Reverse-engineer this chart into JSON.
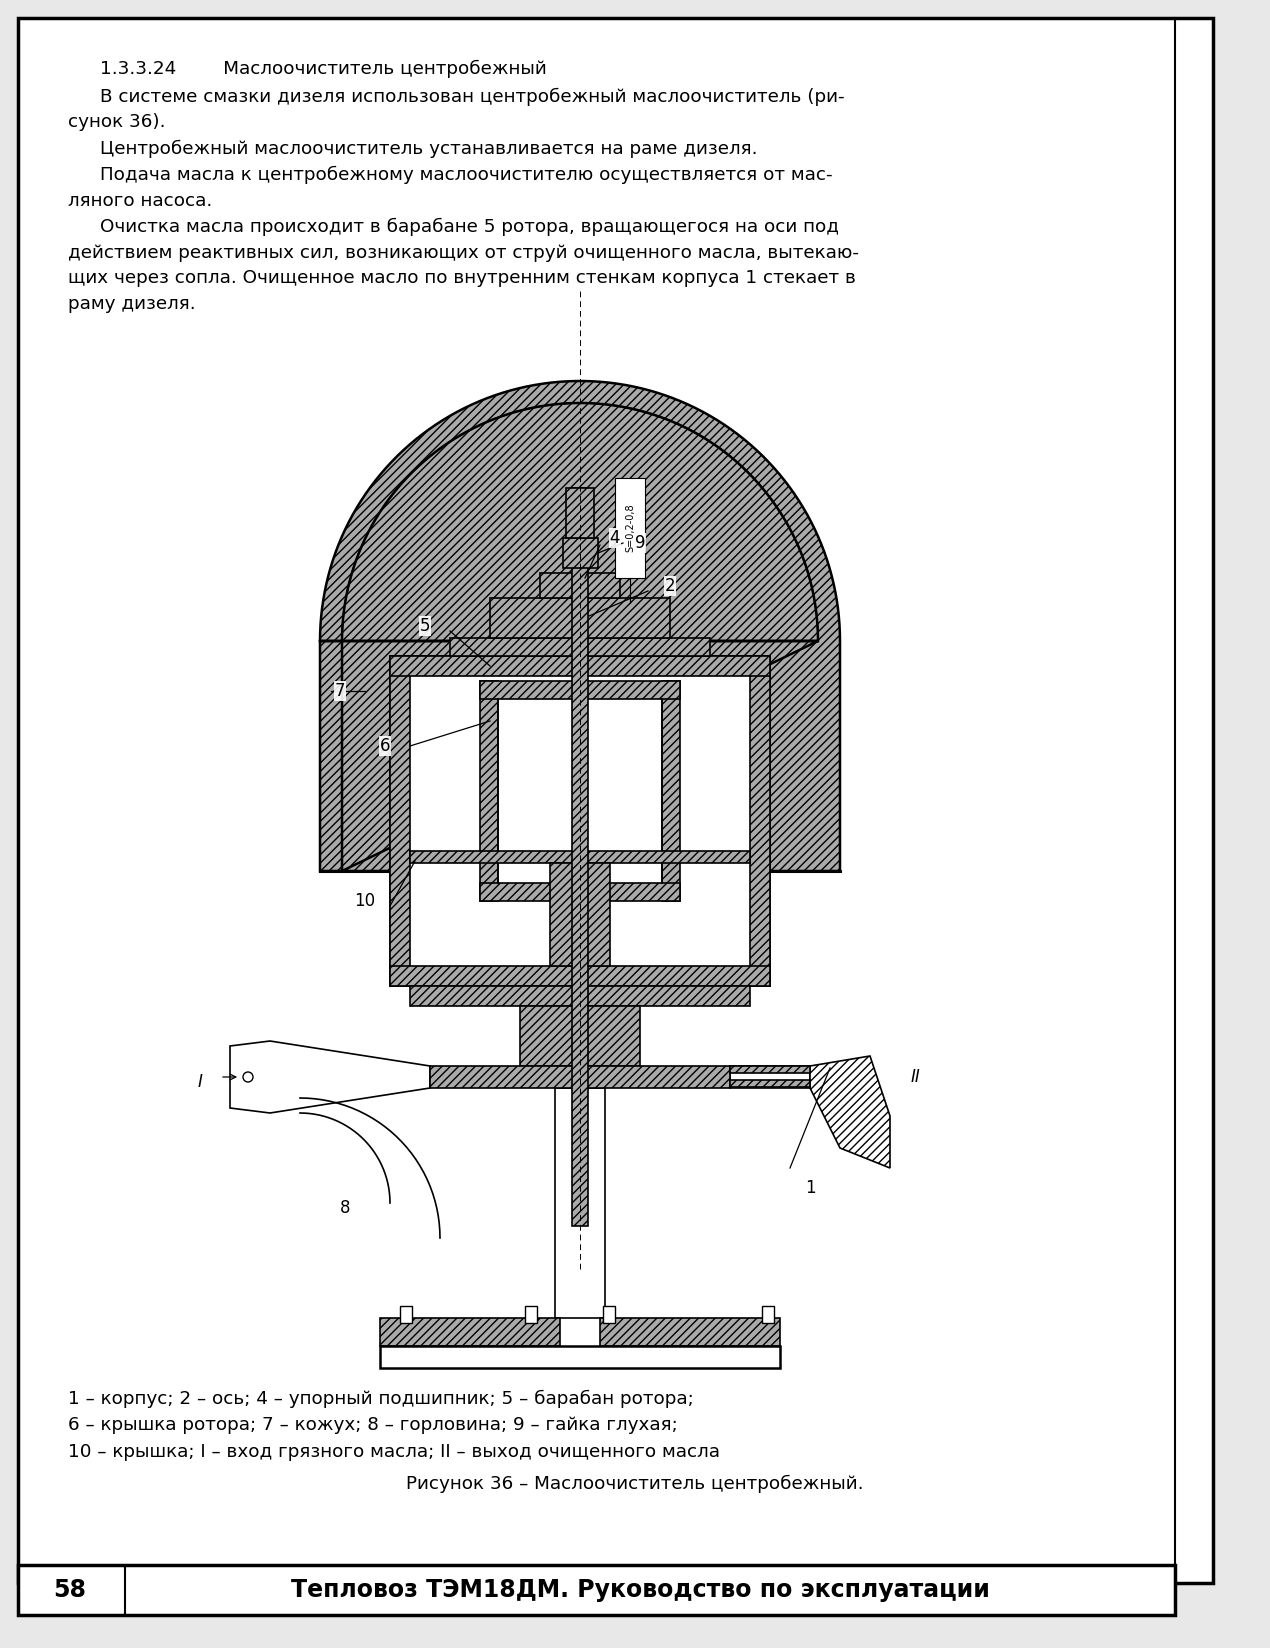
{
  "page_bg": "#e8e8e8",
  "content_bg": "#ffffff",
  "border_color": "#000000",
  "title_section": "1.3.3.24        Маслоочиститель центробежный",
  "p1a": "В системе смазки дизеля использован центробежный маслоочиститель (ри-",
  "p1b": "сунок 36).",
  "p2": "Центробежный маслоочиститель устанавливается на раме дизеля.",
  "p3a": "Подача масла к центробежному маслоочистителю осуществляется от мас-",
  "p3b": "ляного насоса.",
  "p4a": "Очистка масла происходит в барабане 5 ротора, вращающегося на оси под",
  "p4b": "действием реактивных сил, возникающих от струй очищенного масла, вытекаю-",
  "p4c": "щих через сопла. Очищенное масло по внутренним стенкам корпуса 1 стекает в",
  "p4d": "раму дизеля.",
  "legend_line1": "1 – корпус; 2 – ось; 4 – упорный подшипник; 5 – барабан ротора;",
  "legend_line2": "6 – крышка ротора; 7 – кожух; 8 – горловина; 9 – гайка глухая;",
  "legend_line3": "10 – крышка; I – вход грязного масла; II – выход очищенного масла",
  "figure_caption": "Рисунок 36 – Маслоочиститель центробежный.",
  "footer_num": "58",
  "footer_text": "Тепловоз ТЭМ18ДМ. Руководство по эксплуатации"
}
